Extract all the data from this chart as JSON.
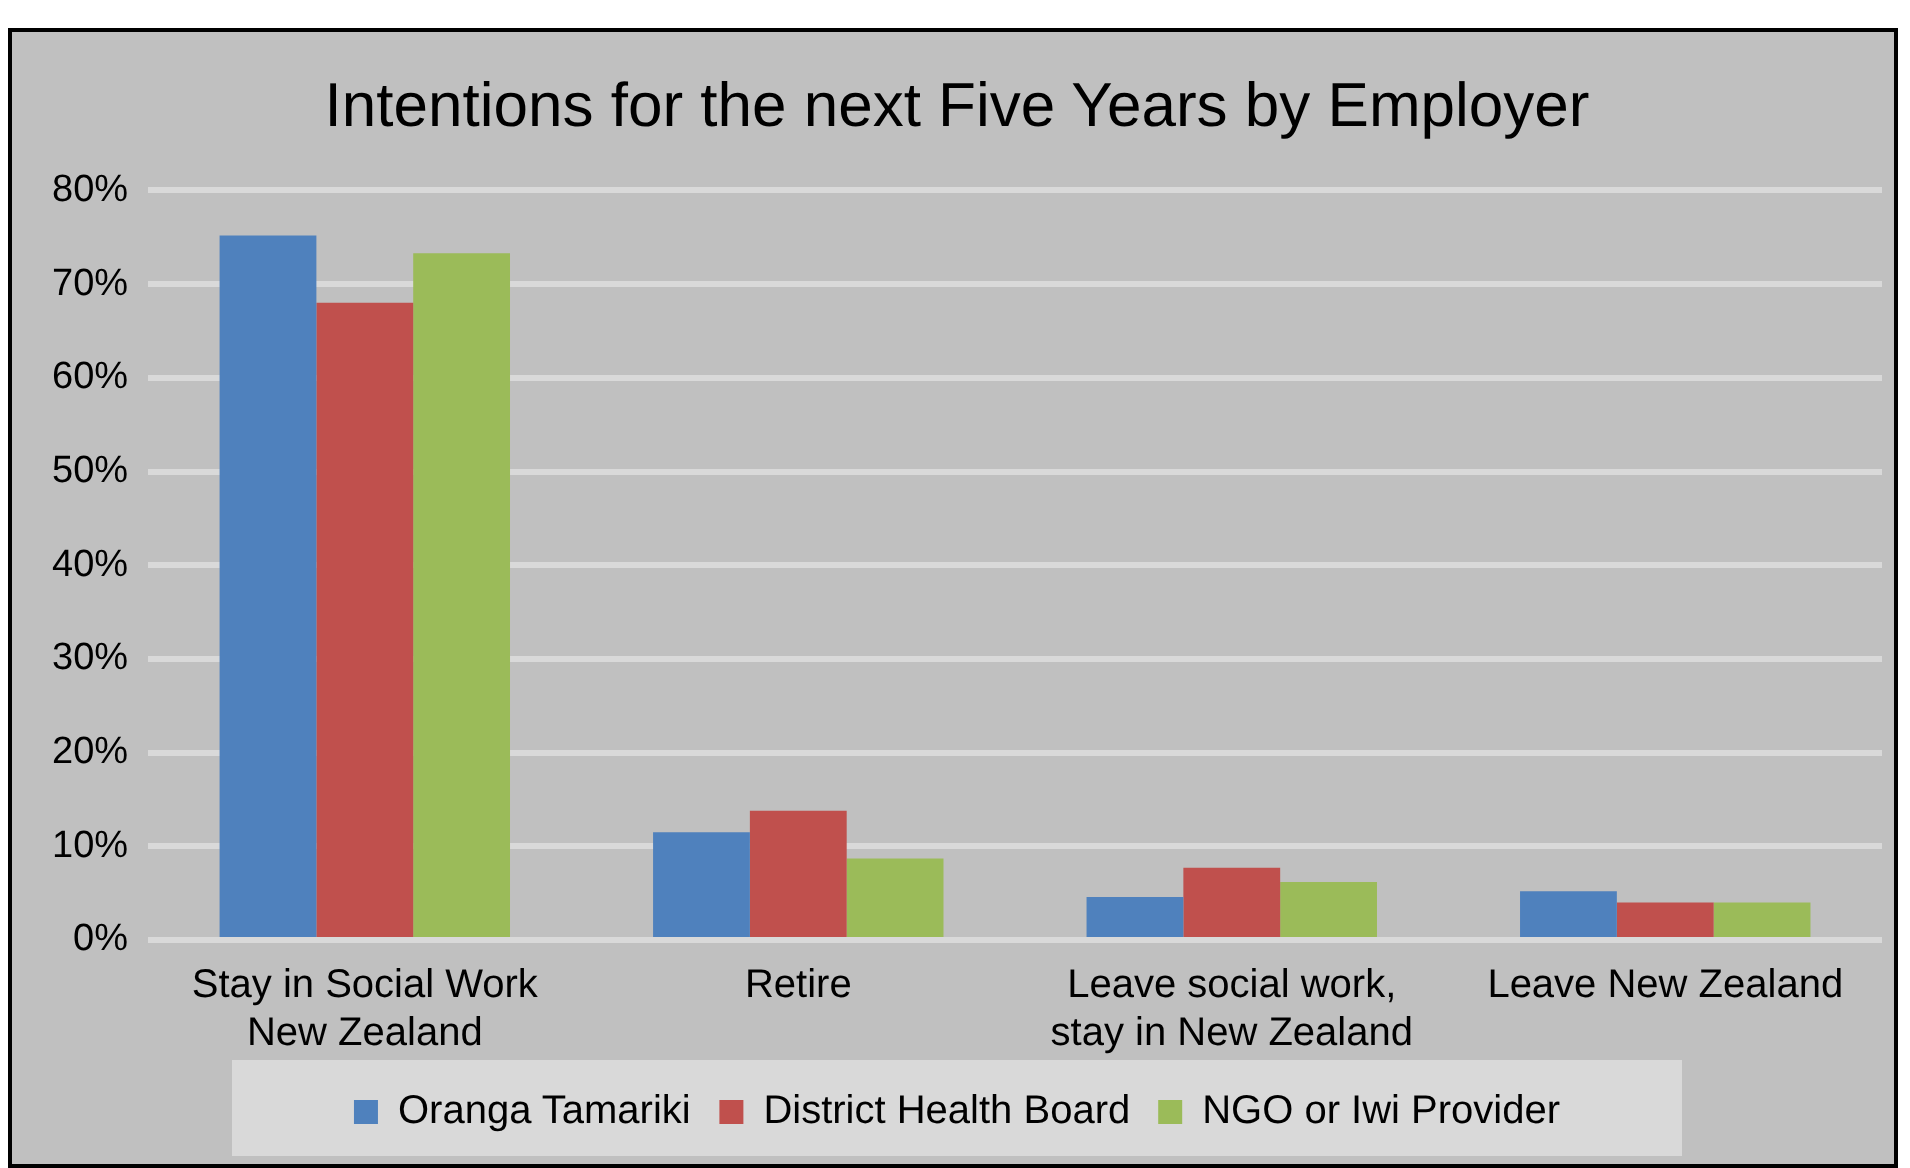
{
  "chart_data": {
    "type": "bar",
    "title": "Intentions for the next Five Years by Employer",
    "categories": [
      "Stay in Social Work New Zealand",
      "Retire",
      "Leave social work, stay in New Zealand",
      "Leave New Zealand"
    ],
    "series": [
      {
        "name": "Oranga Tamariki",
        "color": "#4f81bd",
        "values": [
          75.2,
          11.5,
          4.6,
          5.2
        ]
      },
      {
        "name": "District Health Board",
        "color": "#c0504d",
        "values": [
          68,
          13.8,
          7.7,
          4
        ]
      },
      {
        "name": "NGO or Iwi Provider",
        "color": "#9bbb59",
        "values": [
          73.3,
          8.7,
          6.2,
          4
        ]
      }
    ],
    "ylim": [
      0,
      80
    ],
    "yticks": [
      {
        "value": 0,
        "label": "0%"
      },
      {
        "value": 10,
        "label": "10%"
      },
      {
        "value": 20,
        "label": "20%"
      },
      {
        "value": 30,
        "label": "30%"
      },
      {
        "value": 40,
        "label": "40%"
      },
      {
        "value": 50,
        "label": "50%"
      },
      {
        "value": 60,
        "label": "60%"
      },
      {
        "value": 70,
        "label": "70%"
      },
      {
        "value": 80,
        "label": "80%"
      }
    ],
    "grid": "y",
    "legend": "bottom"
  }
}
